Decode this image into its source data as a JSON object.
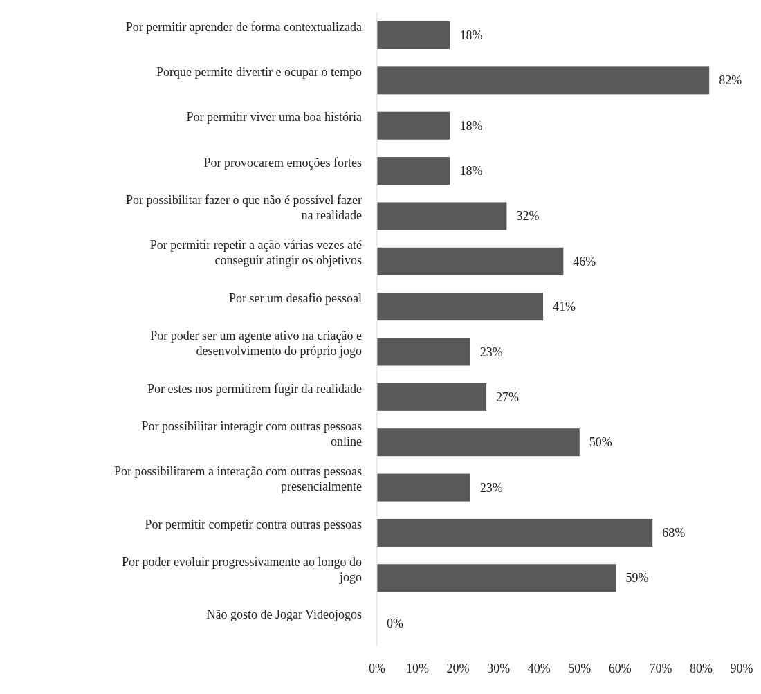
{
  "chart_data": {
    "type": "bar",
    "orientation": "horizontal",
    "categories": [
      "Por permitir aprender de forma contextualizada",
      "Porque permite divertir e ocupar o tempo",
      "Por permitir viver uma boa história",
      "Por provocarem emoções fortes",
      "Por possibilitar fazer o que não é possível fazer na realidade",
      "Por permitir repetir a ação várias vezes até conseguir atingir os objetivos",
      "Por ser um desafio pessoal",
      "Por poder ser um agente ativo na criação e desenvolvimento do próprio jogo",
      "Por estes nos permitirem fugir da realidade",
      "Por possibilitar interagir com outras pessoas online",
      "Por possibilitarem a interação com outras pessoas presencialmente",
      "Por permitir competir contra outras pessoas",
      "Por poder evoluir progressivamente ao longo do jogo",
      "Não gosto de Jogar Videojogos"
    ],
    "values": [
      18,
      82,
      18,
      18,
      32,
      46,
      41,
      23,
      27,
      50,
      23,
      68,
      59,
      0
    ],
    "value_labels": [
      "18%",
      "82%",
      "18%",
      "18%",
      "32%",
      "46%",
      "41%",
      "23%",
      "27%",
      "50%",
      "23%",
      "68%",
      "59%",
      "0%"
    ],
    "color": "#595959",
    "xlim": [
      0,
      90
    ],
    "xticks": [
      {
        "value": 0,
        "label": "0%"
      },
      {
        "value": 10,
        "label": "10%"
      },
      {
        "value": 20,
        "label": "20%"
      },
      {
        "value": 30,
        "label": "30%"
      },
      {
        "value": 40,
        "label": "40%"
      },
      {
        "value": 50,
        "label": "50%"
      },
      {
        "value": 60,
        "label": "60%"
      },
      {
        "value": 70,
        "label": "70%"
      },
      {
        "value": 80,
        "label": "80%"
      },
      {
        "value": 90,
        "label": "90%"
      }
    ],
    "grid": false,
    "legend": false
  }
}
